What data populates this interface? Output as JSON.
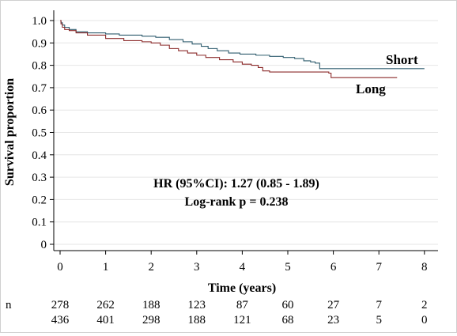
{
  "chart_data": {
    "type": "line",
    "xlabel": "Time (years)",
    "ylabel": "Survival proportion",
    "xlim": [
      0,
      8
    ],
    "ylim": [
      0,
      1.0
    ],
    "x_ticks": [
      "0",
      "1",
      "2",
      "3",
      "4",
      "5",
      "6",
      "7",
      "8"
    ],
    "y_ticks": [
      "0",
      "0.1",
      "0.2",
      "0.3",
      "0.4",
      "0.5",
      "0.6",
      "0.7",
      "0.8",
      "0.9",
      "1.0"
    ],
    "grid": "horizontal",
    "annotations": [
      "HR (95%CI): 1.27 (0.85 - 1.89)",
      "Log-rank p = 0.238"
    ],
    "series": [
      {
        "name": "Short",
        "color": "#2f5c6e",
        "step": true,
        "points": [
          [
            0,
            1.0
          ],
          [
            0.02,
            0.99
          ],
          [
            0.05,
            0.98
          ],
          [
            0.1,
            0.97
          ],
          [
            0.2,
            0.96
          ],
          [
            0.35,
            0.95
          ],
          [
            0.6,
            0.945
          ],
          [
            1.0,
            0.94
          ],
          [
            1.3,
            0.935
          ],
          [
            1.8,
            0.93
          ],
          [
            2.1,
            0.925
          ],
          [
            2.4,
            0.915
          ],
          [
            2.7,
            0.905
          ],
          [
            2.9,
            0.895
          ],
          [
            3.1,
            0.885
          ],
          [
            3.25,
            0.875
          ],
          [
            3.45,
            0.865
          ],
          [
            3.7,
            0.855
          ],
          [
            3.95,
            0.85
          ],
          [
            4.3,
            0.845
          ],
          [
            4.6,
            0.84
          ],
          [
            4.9,
            0.835
          ],
          [
            5.15,
            0.83
          ],
          [
            5.35,
            0.82
          ],
          [
            5.5,
            0.815
          ],
          [
            5.6,
            0.81
          ],
          [
            5.7,
            0.785
          ],
          [
            7.0,
            0.785
          ],
          [
            8.0,
            0.785
          ]
        ]
      },
      {
        "name": "Long",
        "color": "#8b2a2a",
        "step": true,
        "points": [
          [
            0,
            1.0
          ],
          [
            0.02,
            0.985
          ],
          [
            0.05,
            0.97
          ],
          [
            0.1,
            0.96
          ],
          [
            0.2,
            0.955
          ],
          [
            0.35,
            0.945
          ],
          [
            0.6,
            0.935
          ],
          [
            1.0,
            0.92
          ],
          [
            1.4,
            0.91
          ],
          [
            1.8,
            0.905
          ],
          [
            2.0,
            0.9
          ],
          [
            2.2,
            0.89
          ],
          [
            2.4,
            0.875
          ],
          [
            2.6,
            0.865
          ],
          [
            2.8,
            0.855
          ],
          [
            3.0,
            0.845
          ],
          [
            3.2,
            0.835
          ],
          [
            3.5,
            0.825
          ],
          [
            3.8,
            0.815
          ],
          [
            4.0,
            0.805
          ],
          [
            4.2,
            0.8
          ],
          [
            4.35,
            0.79
          ],
          [
            4.45,
            0.775
          ],
          [
            4.6,
            0.77
          ],
          [
            5.9,
            0.765
          ],
          [
            5.95,
            0.745
          ],
          [
            7.0,
            0.745
          ],
          [
            7.4,
            0.745
          ]
        ]
      }
    ],
    "series_labels": [
      "Short",
      "Long"
    ],
    "risk_table": {
      "label": "n",
      "times": [
        0,
        1,
        2,
        3,
        4,
        5,
        6,
        7,
        8
      ],
      "rows": [
        [
          "278",
          "262",
          "188",
          "123",
          "87",
          "60",
          "27",
          "7",
          "2"
        ],
        [
          "436",
          "401",
          "298",
          "188",
          "121",
          "68",
          "23",
          "5",
          "0"
        ]
      ]
    }
  }
}
